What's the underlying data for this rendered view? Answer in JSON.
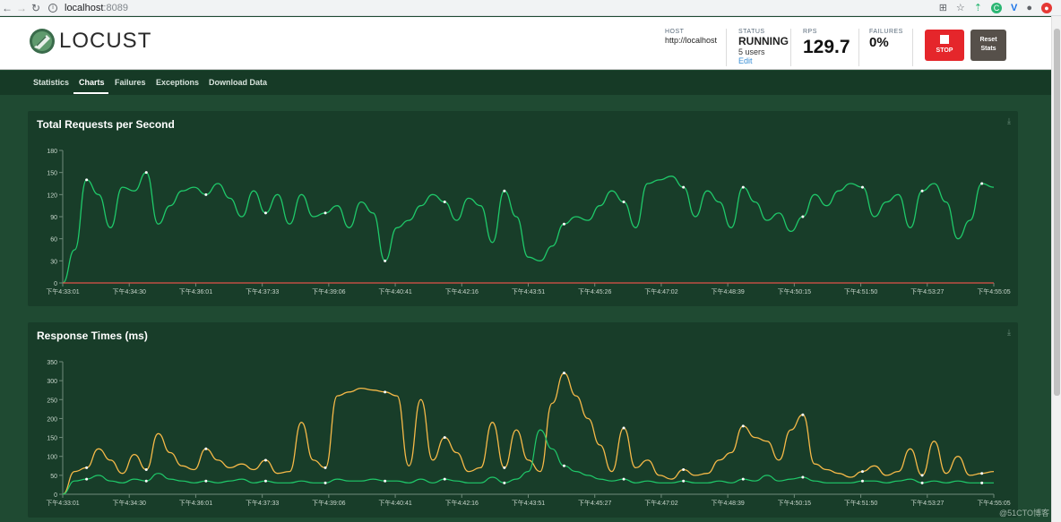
{
  "browser": {
    "url_host": "localhost",
    "url_port": ":8089"
  },
  "header": {
    "logo_text": "LOCUST",
    "host": {
      "label": "HOST",
      "value": "http://localhost"
    },
    "status": {
      "label": "STATUS",
      "value": "RUNNING",
      "users": "5 users",
      "edit": "Edit"
    },
    "rps": {
      "label": "RPS",
      "value": "129.7"
    },
    "failures": {
      "label": "FAILURES",
      "value": "0%"
    },
    "stop_label": "STOP",
    "reset_label_1": "Reset",
    "reset_label_2": "Stats",
    "colors": {
      "stop": "#e5262b",
      "reset": "#56504a"
    }
  },
  "tabs": [
    {
      "label": "Statistics"
    },
    {
      "label": "Charts",
      "active": true
    },
    {
      "label": "Failures"
    },
    {
      "label": "Exceptions"
    },
    {
      "label": "Download Data"
    }
  ],
  "chart_data": [
    {
      "type": "line",
      "title": "Total Requests per Second",
      "x_ticks": [
        "下午4:33:01",
        "下午4:34:30",
        "下午4:36:01",
        "下午4:37:33",
        "下午4:39:06",
        "下午4:40:41",
        "下午4:42:16",
        "下午4:43:51",
        "下午4:45:26",
        "下午4:47:02",
        "下午4:48:39",
        "下午4:50:15",
        "下午4:51:50",
        "下午4:53:27",
        "下午4:55:05"
      ],
      "y_ticks": [
        0,
        30,
        60,
        90,
        120,
        150,
        180
      ],
      "ylim": [
        0,
        180
      ],
      "grid": false,
      "series": [
        {
          "color": "#1fc96a",
          "values": [
            0,
            45,
            140,
            120,
            75,
            130,
            125,
            150,
            80,
            105,
            125,
            130,
            120,
            135,
            115,
            90,
            125,
            95,
            120,
            80,
            120,
            90,
            95,
            105,
            75,
            110,
            95,
            30,
            75,
            85,
            105,
            120,
            110,
            85,
            115,
            105,
            55,
            125,
            90,
            35,
            30,
            50,
            80,
            90,
            85,
            105,
            125,
            110,
            75,
            135,
            140,
            145,
            130,
            90,
            125,
            110,
            75,
            130,
            110,
            85,
            95,
            70,
            90,
            120,
            105,
            125,
            135,
            130,
            90,
            110,
            120,
            75,
            125,
            135,
            110,
            60,
            85,
            135,
            130
          ]
        },
        {
          "color": "#e0524a",
          "values": [
            0,
            0,
            0,
            0,
            0,
            0,
            0,
            0,
            0,
            0,
            0,
            0,
            0,
            0,
            0,
            0,
            0,
            0,
            0,
            0,
            0,
            0,
            0,
            0,
            0,
            0,
            0,
            0,
            0,
            0,
            0,
            0,
            0,
            0,
            0,
            0,
            0,
            0,
            0,
            0,
            0,
            0,
            0,
            0,
            0,
            0,
            0,
            0,
            0,
            0,
            0,
            0,
            0,
            0,
            0,
            0,
            0,
            0,
            0,
            0,
            0,
            0,
            0,
            0,
            0,
            0,
            0,
            0,
            0,
            0,
            0,
            0,
            0,
            0,
            0,
            0,
            0,
            0,
            0
          ]
        }
      ]
    },
    {
      "type": "line",
      "title": "Response Times (ms)",
      "x_ticks": [
        "下午4:33:01",
        "下午4:34:30",
        "下午4:36:01",
        "下午4:37:33",
        "下午4:39:06",
        "下午4:40:41",
        "下午4:42:16",
        "下午4:43:51",
        "下午4:45:27",
        "下午4:47:02",
        "下午4:48:39",
        "下午4:50:15",
        "下午4:51:50",
        "下午4:53:27",
        "下午4:55:05"
      ],
      "y_ticks": [
        0,
        50,
        100,
        150,
        200,
        250,
        300,
        350
      ],
      "ylim": [
        0,
        350
      ],
      "grid": false,
      "series": [
        {
          "color": "#f5b948",
          "values": [
            0,
            60,
            70,
            120,
            90,
            55,
            105,
            65,
            160,
            110,
            75,
            65,
            120,
            90,
            70,
            80,
            65,
            90,
            55,
            60,
            190,
            90,
            70,
            260,
            270,
            280,
            275,
            270,
            260,
            75,
            250,
            90,
            150,
            110,
            60,
            70,
            190,
            70,
            170,
            90,
            60,
            240,
            320,
            260,
            200,
            130,
            60,
            175,
            70,
            90,
            50,
            40,
            65,
            50,
            55,
            90,
            110,
            180,
            150,
            140,
            90,
            170,
            210,
            80,
            65,
            55,
            45,
            60,
            75,
            50,
            60,
            120,
            50,
            140,
            55,
            100,
            50,
            55,
            60
          ]
        },
        {
          "color": "#1fc96a",
          "values": [
            0,
            35,
            40,
            50,
            35,
            30,
            40,
            35,
            55,
            40,
            35,
            30,
            35,
            30,
            35,
            40,
            30,
            35,
            30,
            30,
            35,
            30,
            30,
            40,
            35,
            35,
            40,
            35,
            35,
            30,
            40,
            30,
            40,
            35,
            30,
            30,
            45,
            30,
            40,
            60,
            170,
            120,
            75,
            60,
            50,
            40,
            35,
            40,
            30,
            35,
            30,
            30,
            35,
            30,
            30,
            35,
            30,
            40,
            35,
            50,
            35,
            40,
            45,
            35,
            30,
            30,
            30,
            35,
            35,
            30,
            35,
            40,
            30,
            35,
            30,
            35,
            30,
            30,
            30
          ]
        }
      ]
    }
  ],
  "watermark": "@51CTO博客"
}
